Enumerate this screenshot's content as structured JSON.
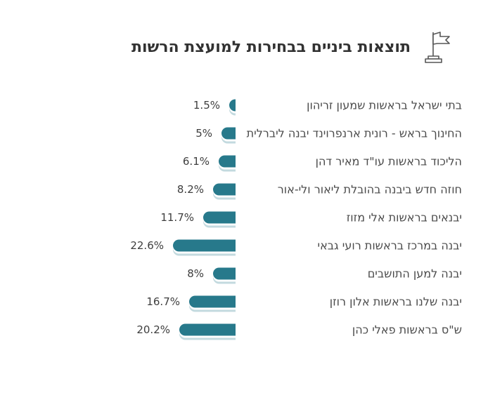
{
  "header": {
    "title": "תוצאות ביניים בבחירות למועצת הרשות",
    "icon": "flag-icon"
  },
  "chart_data": {
    "type": "bar",
    "orientation": "horizontal-rtl",
    "title": "תוצאות ביניים בבחירות למועצת הרשות",
    "categories": [
      "בתי ישראל בראשות שמעון זריהון",
      "החינוך בראש - רונית ארנפרוינד יבנה ליברלית",
      "הליכוד בראשות עו\"ד מאיר דהן",
      "חוזה חדש ביבנה בהובלת ליאור ולי-אור",
      "יבנאים בראשות אלי מזוז",
      "יבנה במרכז בראשות רועי גבאי",
      "יבנה למען התושבים",
      "יבנה שלנו בראשות אלון רוזן",
      "ש\"ס בראשות פאלי כהן"
    ],
    "values": [
      1.5,
      5,
      6.1,
      8.2,
      11.7,
      22.6,
      8,
      16.7,
      20.2
    ],
    "value_labels": [
      "1.5%",
      "5%",
      "6.1%",
      "8.2%",
      "11.7%",
      "22.6%",
      "8%",
      "16.7%",
      "20.2%"
    ],
    "xlabel": "",
    "ylabel": "",
    "xlim": [
      0,
      22.6
    ],
    "grid": false,
    "legend": false,
    "bar_color": "#27798b",
    "bar_shadow_color": "rgba(39,121,139,0.28)",
    "label_color": "#4a4a4a",
    "value_label_color": "#3e3e3e",
    "title_color": "#323232"
  }
}
